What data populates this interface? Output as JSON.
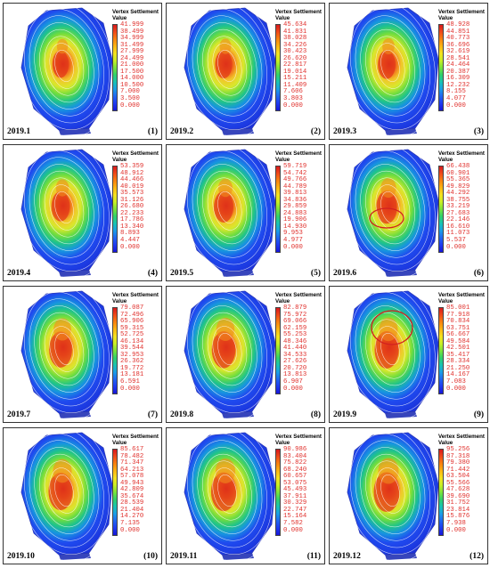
{
  "legend_title_line1": "Vertex Settlement",
  "legend_title_line2": "Value",
  "colors": {
    "scale": [
      "#d7191c",
      "#f04a1a",
      "#f8830f",
      "#fbb512",
      "#f5e21e",
      "#c9ee25",
      "#7ae33a",
      "#2fd06a",
      "#18c3b3",
      "#1a9ee6",
      "#2166f0",
      "#1f3af0",
      "#1616d8"
    ],
    "mesh_base": "#1b2fd8",
    "contour": "#ffffff",
    "label": "#e0302c",
    "circle": "#d22020"
  },
  "panels": [
    {
      "date": "2019.1",
      "num": "(1)",
      "scale": [
        "41.999",
        "38.499",
        "34.999",
        "31.499",
        "27.999",
        "24.499",
        "21.000",
        "17.500",
        "14.000",
        "10.500",
        "7.000",
        "3.500",
        "0.000"
      ],
      "max": 42.0,
      "circle": false
    },
    {
      "date": "2019.2",
      "num": "(2)",
      "scale": [
        "45.634",
        "41.831",
        "38.028",
        "34.226",
        "30.423",
        "26.620",
        "22.817",
        "19.014",
        "15.211",
        "11.409",
        "7.606",
        "3.803",
        "0.000"
      ],
      "max": 45.6,
      "circle": false
    },
    {
      "date": "2019.3",
      "num": "(3)",
      "scale": [
        "48.928",
        "44.851",
        "40.773",
        "36.696",
        "32.619",
        "28.541",
        "24.464",
        "20.387",
        "16.309",
        "12.232",
        "8.155",
        "4.077",
        "0.000"
      ],
      "max": 48.9,
      "circle": false
    },
    {
      "date": "2019.4",
      "num": "(4)",
      "scale": [
        "53.359",
        "48.912",
        "44.466",
        "40.019",
        "35.573",
        "31.126",
        "26.680",
        "22.233",
        "17.786",
        "13.340",
        "8.893",
        "4.447",
        "0.000"
      ],
      "max": 53.4,
      "circle": false
    },
    {
      "date": "2019.5",
      "num": "(5)",
      "scale": [
        "59.719",
        "54.742",
        "49.766",
        "44.789",
        "39.813",
        "34.836",
        "29.859",
        "24.883",
        "19.906",
        "14.930",
        "9.953",
        "4.977",
        "0.000"
      ],
      "max": 59.7,
      "circle": false
    },
    {
      "date": "2019.6",
      "num": "(6)",
      "scale": [
        "66.438",
        "60.901",
        "55.365",
        "49.829",
        "44.292",
        "38.755",
        "33.219",
        "27.683",
        "22.146",
        "16.610",
        "11.073",
        "5.537",
        "0.000"
      ],
      "max": 66.4,
      "circle": "lower"
    },
    {
      "date": "2019.7",
      "num": "(7)",
      "scale": [
        "79.087",
        "72.496",
        "65.906",
        "59.315",
        "52.725",
        "46.134",
        "39.544",
        "32.953",
        "26.362",
        "19.772",
        "13.181",
        "6.591",
        "0.000"
      ],
      "max": 79.1,
      "circle": false
    },
    {
      "date": "2019.8",
      "num": "(8)",
      "scale": [
        "82.879",
        "75.972",
        "69.066",
        "62.159",
        "55.253",
        "48.346",
        "41.440",
        "34.533",
        "27.626",
        "20.720",
        "13.813",
        "6.907",
        "0.000"
      ],
      "max": 82.9,
      "circle": false
    },
    {
      "date": "2019.9",
      "num": "(9)",
      "scale": [
        "85.001",
        "77.918",
        "70.834",
        "63.751",
        "56.667",
        "49.584",
        "42.501",
        "35.417",
        "28.334",
        "21.250",
        "14.167",
        "7.083",
        "0.000"
      ],
      "max": 85.0,
      "circle": "upper"
    },
    {
      "date": "2019.10",
      "num": "(10)",
      "scale": [
        "85.617",
        "78.482",
        "71.347",
        "64.213",
        "57.078",
        "49.943",
        "42.809",
        "35.674",
        "28.539",
        "21.404",
        "14.270",
        "7.135",
        "0.000"
      ],
      "max": 85.6,
      "circle": false
    },
    {
      "date": "2019.11",
      "num": "(11)",
      "scale": [
        "90.986",
        "83.404",
        "75.822",
        "68.240",
        "60.657",
        "53.075",
        "45.493",
        "37.911",
        "30.329",
        "22.747",
        "15.164",
        "7.582",
        "0.000"
      ],
      "max": 91.0,
      "circle": false
    },
    {
      "date": "2019.12",
      "num": "(12)",
      "scale": [
        "95.256",
        "87.318",
        "79.380",
        "71.442",
        "63.504",
        "55.566",
        "47.628",
        "39.690",
        "31.752",
        "23.814",
        "15.876",
        "7.938",
        "0.000"
      ],
      "max": 95.3,
      "circle": false
    }
  ]
}
